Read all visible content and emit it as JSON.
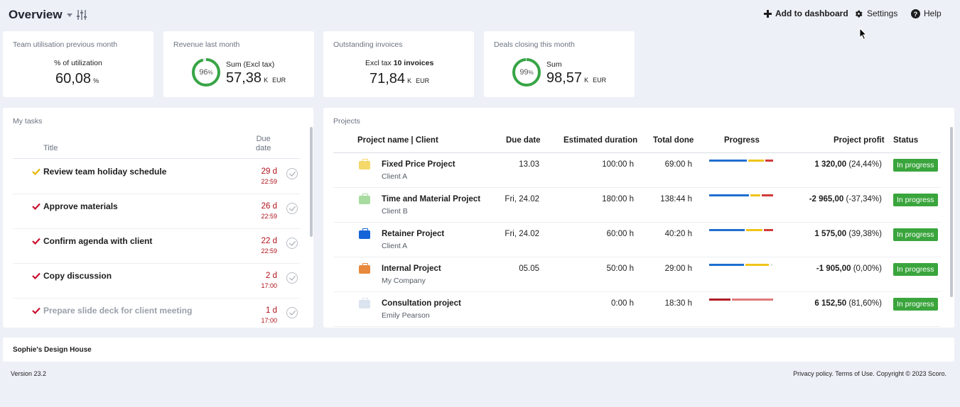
{
  "header": {
    "title": "Overview",
    "add_to_dashboard": "Add to dashboard",
    "settings": "Settings",
    "help": "Help"
  },
  "kpis": [
    {
      "label": "Team utilisation previous month",
      "sub": "% of utilization",
      "value": "60,08",
      "unit": "%"
    },
    {
      "label": "Revenue last month",
      "ring_percent": "96",
      "ring_suffix": "%",
      "sub": "Sum (Excl tax)",
      "value": "57,38",
      "unit": "K",
      "currency": "EUR"
    },
    {
      "label": "Outstanding invoices",
      "sub_prefix": "Excl tax",
      "sub_bold": "10 invoices",
      "value": "71,84",
      "unit": "K",
      "currency": "EUR"
    },
    {
      "label": "Deals closing this month",
      "ring_percent": "99",
      "ring_suffix": "%",
      "sub": "Sum",
      "value": "98,57",
      "unit": "K",
      "currency": "EUR"
    }
  ],
  "tasks": {
    "title": "My tasks",
    "col_title": "Title",
    "col_due_1": "Due",
    "col_due_2": "date",
    "items": [
      {
        "title": "Review team holiday schedule",
        "due": "29 d",
        "time": "22:59",
        "check_color": "#e5b400"
      },
      {
        "title": "Approve materials",
        "due": "26 d",
        "time": "22:59",
        "check_color": "#c8102e"
      },
      {
        "title": "Confirm agenda with client",
        "due": "22 d",
        "time": "22:59",
        "check_color": "#c8102e"
      },
      {
        "title": "Copy discussion",
        "due": "2 d",
        "time": "17:00",
        "check_color": "#c8102e"
      },
      {
        "title": "Prepare slide deck for client meeting",
        "due": "1 d",
        "time": "17:00",
        "check_color": "#c8102e"
      }
    ]
  },
  "projects": {
    "title": "Projects",
    "columns": {
      "name": "Project name | Client",
      "due": "Due date",
      "estimated": "Estimated duration",
      "done": "Total done",
      "progress": "Progress",
      "profit": "Project profit",
      "status": "Status"
    },
    "rows": [
      {
        "name": "Fixed Price Project",
        "client": "Client A",
        "due": "13.03",
        "estimated": "100:00 h",
        "done": "69:00 h",
        "profit_bold": "1 320,00",
        "profit_pct": "(24,44%)",
        "status": "In progress",
        "icon_color": "#f4d86a",
        "progress": [
          {
            "fraction": 0.6,
            "color": "#1f6fcf"
          },
          {
            "fraction": 0.26,
            "color": "#f0c419"
          },
          {
            "fraction": 0.12,
            "color": "#d23a3a"
          }
        ]
      },
      {
        "name": "Time and Material Project",
        "client": "Client B",
        "due": "Fri, 24.02",
        "estimated": "180:00 h",
        "done": "138:44 h",
        "profit_bold": "-2 965,00",
        "profit_pct": "(-37,34%)",
        "status": "In progress",
        "icon_color": "#a8dba0",
        "progress": [
          {
            "fraction": 0.62,
            "color": "#1f6fcf"
          },
          {
            "fraction": 0.16,
            "color": "#f0c419"
          },
          {
            "fraction": 0.18,
            "color": "#d23a3a"
          }
        ]
      },
      {
        "name": "Retainer Project",
        "client": "Client A",
        "due": "Fri, 24.02",
        "estimated": "60:00 h",
        "done": "40:20 h",
        "profit_bold": "1 575,00",
        "profit_pct": "(39,38%)",
        "status": "In progress",
        "icon_color": "#1565d8",
        "progress": [
          {
            "fraction": 0.56,
            "color": "#1f6fcf"
          },
          {
            "fraction": 0.26,
            "color": "#f0c419"
          },
          {
            "fraction": 0.15,
            "color": "#d23a3a"
          }
        ]
      },
      {
        "name": "Internal Project",
        "client": "My Company",
        "due": "05.05",
        "estimated": "50:00 h",
        "done": "29:00 h",
        "profit_bold": "-1 905,00",
        "profit_pct": "(0,00%)",
        "status": "In progress",
        "icon_color": "#e8893c",
        "progress": [
          {
            "fraction": 0.55,
            "color": "#1f6fcf"
          },
          {
            "fraction": 0.36,
            "color": "#f0c419"
          },
          {
            "fraction": 0.05,
            "color": "#e8ecf2"
          }
        ]
      },
      {
        "name": "Consultation project",
        "client": "Emily Pearson",
        "due": "",
        "estimated": "0:00 h",
        "done": "18:30 h",
        "profit_bold": "6 152,50",
        "profit_pct": "(81,60%)",
        "status": "In progress",
        "icon_color": "#dbe3ee",
        "progress": [
          {
            "fraction": 0.33,
            "color": "#b01c24"
          },
          {
            "fraction": 0.65,
            "color": "#e07a7a"
          }
        ]
      }
    ]
  },
  "company": "Sophie's Design House",
  "footer": {
    "version": "Version 23.2",
    "legal": "Privacy policy. Terms of Use. Copyright © 2023 Scoro."
  }
}
